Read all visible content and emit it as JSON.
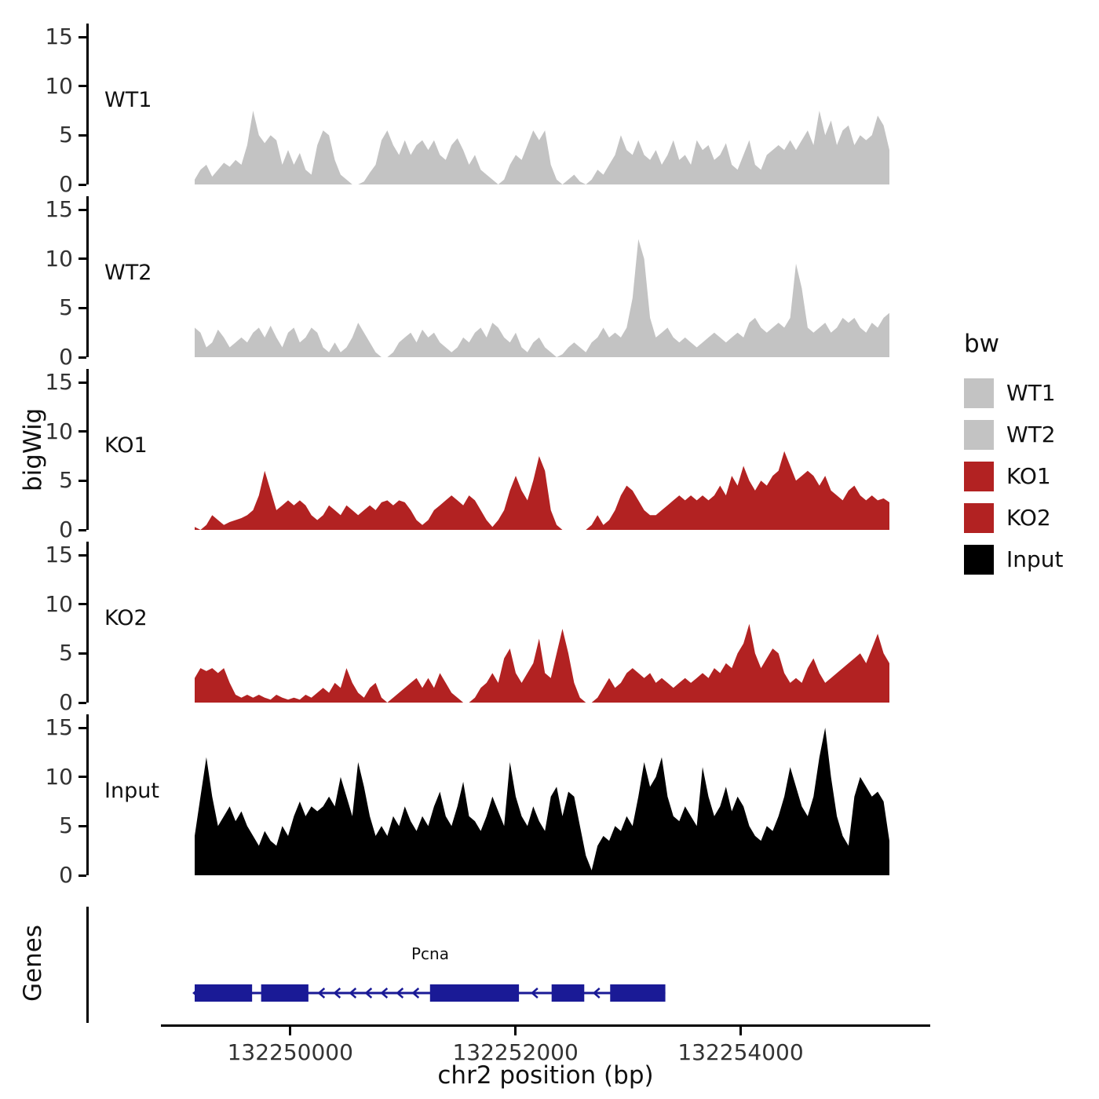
{
  "chart_data": {
    "type": "area",
    "title": "",
    "description": "Genome browser coverage tracks (bigWig) over the Pcna locus with a gene model panel",
    "x_axis": {
      "label": "chr2 position (bp)",
      "ticks": [
        132250000,
        132252000,
        132254000
      ],
      "range": [
        132249130,
        132255300
      ]
    },
    "y_axis": {
      "label": "bigWig",
      "ticks": [
        0,
        5,
        10,
        15
      ],
      "range": [
        0,
        15
      ]
    },
    "legend": {
      "title": "bw",
      "entries": [
        {
          "label": "WT1",
          "color": "#C3C3C3"
        },
        {
          "label": "WT2",
          "color": "#C3C3C3"
        },
        {
          "label": "KO1",
          "color": "#B22222"
        },
        {
          "label": "KO2",
          "color": "#B22222"
        },
        {
          "label": "Input",
          "color": "#000000"
        }
      ]
    },
    "series": [
      {
        "name": "WT1",
        "color": "#C3C3C3",
        "values": [
          0.5,
          1.5,
          2,
          0.8,
          1.5,
          2.2,
          1.8,
          2.5,
          2,
          4,
          7.5,
          5,
          4.2,
          5,
          4.5,
          2,
          3.5,
          2,
          3.2,
          1.5,
          1,
          4,
          5.5,
          5,
          2.5,
          1,
          0.5,
          0,
          0,
          0.3,
          1.2,
          2,
          4.5,
          5.5,
          4,
          3,
          4.5,
          3,
          4,
          4.5,
          3.5,
          4.5,
          3,
          2.5,
          4,
          4.7,
          3.5,
          2,
          3,
          1.5,
          1,
          0.5,
          0,
          0.5,
          2,
          3,
          2.5,
          4,
          5.5,
          4.5,
          5.5,
          2,
          0.5,
          0,
          0.5,
          1,
          0.3,
          0,
          0.5,
          1.5,
          1,
          2,
          3,
          5,
          3.5,
          3,
          4.5,
          3,
          2.5,
          3.5,
          2,
          3,
          4.5,
          2.5,
          3,
          2,
          4.5,
          3.5,
          4,
          2.5,
          3,
          4.2,
          2,
          1.5,
          3,
          4.5,
          2,
          1.5,
          3,
          3.5,
          4,
          3.5,
          4.5,
          3.5,
          4.5,
          5.5,
          4,
          7.5,
          5,
          6.5,
          4,
          5.5,
          6,
          4,
          5,
          4.5,
          5,
          7,
          6,
          3.5
        ]
      },
      {
        "name": "WT2",
        "color": "#C3C3C3",
        "values": [
          3,
          2.5,
          1,
          1.5,
          2.8,
          2,
          1,
          1.5,
          2,
          1.5,
          2.5,
          3,
          2,
          3.2,
          2,
          1,
          2.5,
          3,
          1.5,
          2,
          3,
          2.5,
          1,
          0.5,
          1.5,
          0.5,
          1,
          2,
          3.5,
          2.5,
          1.5,
          0.5,
          0,
          0,
          0.5,
          1.5,
          2,
          2.5,
          1.5,
          2.8,
          2,
          2.5,
          1.5,
          1,
          0.5,
          1,
          2,
          1.5,
          2.5,
          3,
          2,
          3.5,
          3,
          2,
          1.5,
          2.5,
          1,
          0.5,
          1.5,
          2,
          1,
          0.5,
          0,
          0.3,
          1,
          1.5,
          1,
          0.5,
          1.5,
          2,
          3,
          2,
          2.5,
          2,
          3,
          6,
          12,
          10,
          4,
          2,
          2.5,
          3,
          2,
          1.5,
          2,
          1.5,
          1,
          1.5,
          2,
          2.5,
          2,
          1.5,
          2,
          2.5,
          2,
          3.5,
          4,
          3,
          2.5,
          3,
          3.5,
          3,
          4,
          9.5,
          7,
          3,
          2.5,
          3,
          3.5,
          2.5,
          3,
          4,
          3.5,
          4,
          3,
          2.5,
          3.5,
          3,
          4,
          4.5
        ]
      },
      {
        "name": "KO1",
        "color": "#B22222",
        "values": [
          0.3,
          0,
          0.5,
          1.5,
          1,
          0.5,
          0.8,
          1,
          1.2,
          1.5,
          2,
          3.5,
          6,
          4,
          2,
          2.5,
          3,
          2.5,
          3,
          2.5,
          1.5,
          1,
          1.5,
          2.5,
          2,
          1.5,
          2.5,
          2,
          1.5,
          2,
          2.5,
          2,
          2.8,
          3,
          2.5,
          3,
          2.8,
          2,
          1,
          0.5,
          1,
          2,
          2.5,
          3,
          3.5,
          3,
          2.5,
          3.5,
          3,
          2,
          1,
          0.3,
          1,
          2,
          4,
          5.5,
          4,
          3,
          5,
          7.5,
          6,
          2,
          0.5,
          0,
          0,
          0,
          0,
          0,
          0.5,
          1.5,
          0.5,
          1,
          2,
          3.5,
          4.5,
          4,
          3,
          2,
          1.5,
          1.5,
          2,
          2.5,
          3,
          3.5,
          3,
          3.5,
          3,
          3.5,
          3,
          3.5,
          4.5,
          3.5,
          5.5,
          4.5,
          6.5,
          5,
          4,
          5,
          4.5,
          5.5,
          6,
          8,
          6.5,
          5,
          5.5,
          6,
          5.5,
          4.5,
          5.5,
          4,
          3.5,
          3,
          4,
          4.5,
          3.5,
          3,
          3.5,
          3,
          3.2,
          2.8
        ]
      },
      {
        "name": "KO2",
        "color": "#B22222",
        "values": [
          2.5,
          3.5,
          3.2,
          3.5,
          3,
          3.5,
          2,
          0.8,
          0.5,
          0.8,
          0.5,
          0.8,
          0.5,
          0.3,
          0.8,
          0.5,
          0.3,
          0.5,
          0.3,
          0.8,
          0.5,
          1,
          1.5,
          1,
          2,
          1.5,
          3.5,
          2,
          1,
          0.5,
          1.5,
          2,
          0.5,
          0,
          0.5,
          1,
          1.5,
          2,
          2.5,
          1.5,
          2.5,
          1.5,
          3,
          2,
          1,
          0.5,
          0,
          0,
          0.5,
          1.5,
          2,
          3,
          2,
          4.5,
          5.5,
          3,
          2,
          3,
          4,
          6.5,
          3,
          2.5,
          5,
          7.5,
          5,
          2,
          0.5,
          0,
          0,
          0.5,
          1.5,
          2.5,
          1.5,
          2,
          3,
          3.5,
          3,
          2.5,
          3,
          2,
          2.5,
          2,
          1.5,
          2,
          2.5,
          2,
          2.5,
          3,
          2.5,
          3.5,
          3,
          4,
          3.5,
          5,
          6,
          8,
          5,
          3.5,
          4.5,
          5.5,
          5,
          3,
          2,
          2.5,
          2,
          3.5,
          4.5,
          3,
          2,
          2.5,
          3,
          3.5,
          4,
          4.5,
          5,
          4,
          5.5,
          7,
          5,
          4
        ]
      },
      {
        "name": "Input",
        "color": "#000000",
        "values": [
          4,
          8,
          12,
          8,
          5,
          6,
          7,
          5.5,
          6.5,
          5,
          4,
          3,
          4.5,
          3.5,
          3,
          5,
          4,
          6,
          7.5,
          6,
          7,
          6.5,
          7,
          8,
          7,
          10,
          8,
          6,
          11.5,
          9,
          6,
          4,
          5,
          4,
          6,
          5,
          7,
          5.5,
          4.5,
          6,
          5,
          7,
          8.5,
          6,
          5,
          7,
          9.5,
          6,
          5.5,
          4.5,
          6,
          8,
          6.5,
          5,
          11.5,
          8,
          6,
          5,
          7,
          5.5,
          4.5,
          8,
          9,
          6,
          8.5,
          8,
          5,
          2,
          0.5,
          3,
          4,
          3.5,
          5,
          4.5,
          6,
          5,
          8,
          11.5,
          9,
          10,
          12,
          8,
          6,
          5.5,
          7,
          6,
          5,
          11,
          8,
          6,
          7,
          9,
          6.5,
          8,
          7,
          5,
          4,
          3.5,
          5,
          4.5,
          6,
          8,
          11,
          9,
          7,
          6,
          8,
          12,
          15,
          10,
          6,
          4,
          3,
          8,
          10,
          9,
          8,
          8.5,
          7.5,
          3.5
        ]
      }
    ],
    "genes_panel": {
      "label": "Genes",
      "gene": {
        "name": "Pcna",
        "strand": "-",
        "color": "#1A1A96",
        "start": 132249130,
        "end": 132253310,
        "exons": [
          {
            "start": 132249130,
            "end": 132249640
          },
          {
            "start": 132249720,
            "end": 132250140
          },
          {
            "start": 132251220,
            "end": 132252010
          },
          {
            "start": 132252300,
            "end": 132252590
          },
          {
            "start": 132252820,
            "end": 132253310
          }
        ]
      }
    }
  }
}
